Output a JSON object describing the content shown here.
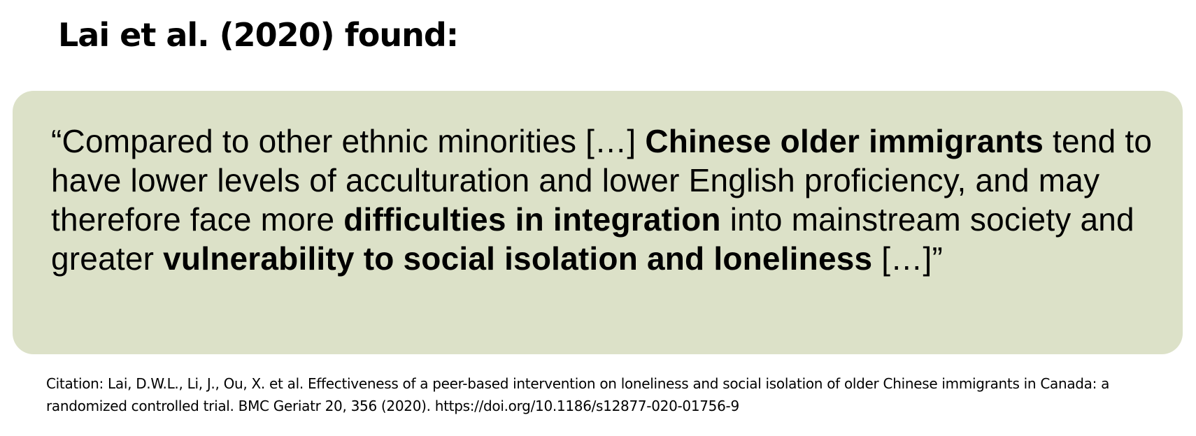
{
  "heading": "Lai et al. (2020) found:",
  "quote": {
    "bg_color": "#dce1c8",
    "segments": [
      {
        "text": "“Compared to other ethnic minorities […] ",
        "bold": false
      },
      {
        "text": "Chinese older immigrants",
        "bold": true
      },
      {
        "text": " tend to have lower levels of acculturation and lower English proficiency, and may therefore face more ",
        "bold": false
      },
      {
        "text": "difficulties in integration",
        "bold": true
      },
      {
        "text": " into mainstream society and greater ",
        "bold": false
      },
      {
        "text": "vulnerability to social isolation and loneliness",
        "bold": true
      },
      {
        "text": " […]”",
        "bold": false
      }
    ]
  },
  "citation": "Citation: Lai, D.W.L., Li, J., Ou, X. et al. Effectiveness of a peer-based intervention on loneliness and social isolation of older Chinese immigrants in Canada: a randomized controlled trial. BMC Geriatr 20, 356 (2020). https://doi.org/10.1186/s12877-020-01756-9"
}
